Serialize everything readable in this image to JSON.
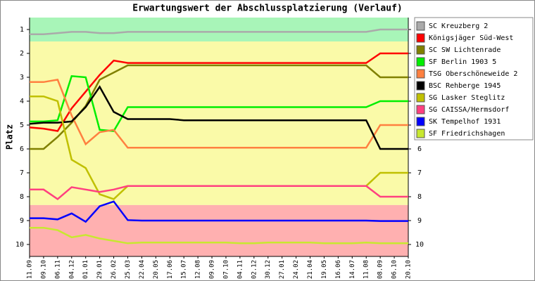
{
  "chart_data": {
    "type": "line",
    "title": "Erwartungswert der Abschlussplatzierung (Verlauf)",
    "y_label": "Platz",
    "categories": [
      "11.09",
      "09.10",
      "06.11",
      "04.12",
      "01.01",
      "29.01",
      "26.02",
      "25.03",
      "22.04",
      "20.05",
      "17.06",
      "15.07",
      "12.08",
      "09.09",
      "07.10",
      "04.11",
      "02.12",
      "30.12",
      "27.01",
      "24.02",
      "21.04",
      "19.05",
      "16.06",
      "14.07",
      "11.08",
      "08.09",
      "06.10",
      "20.10"
    ],
    "ylim": [
      10.5,
      0.5
    ],
    "yticks": [
      1,
      2,
      3,
      4,
      5,
      6,
      7,
      8,
      9,
      10
    ],
    "zones": [
      {
        "from": 0.5,
        "to": 1.5,
        "color": "#a8f5b8"
      },
      {
        "from": 1.5,
        "to": 8.35,
        "color": "#fafaa8"
      },
      {
        "from": 8.35,
        "to": 10.5,
        "color": "#ffb0b0"
      }
    ],
    "series": [
      {
        "name": "SC Kreuzberg 2",
        "color": "#aaaaaa",
        "values": [
          1.2,
          1.2,
          1.15,
          1.1,
          1.1,
          1.15,
          1.15,
          1.1,
          1.1,
          1.1,
          1.1,
          1.1,
          1.1,
          1.1,
          1.1,
          1.1,
          1.1,
          1.1,
          1.1,
          1.1,
          1.1,
          1.1,
          1.1,
          1.1,
          1.1,
          1.0,
          1.0,
          1.0
        ]
      },
      {
        "name": "Königsjäger Süd-West",
        "color": "#ff0000",
        "values": [
          5.1,
          5.15,
          5.25,
          4.3,
          3.6,
          2.9,
          2.3,
          2.4,
          2.4,
          2.4,
          2.4,
          2.4,
          2.4,
          2.4,
          2.4,
          2.4,
          2.4,
          2.4,
          2.4,
          2.4,
          2.4,
          2.4,
          2.4,
          2.4,
          2.4,
          2.0,
          2.0,
          2.0
        ]
      },
      {
        "name": "SC SW Lichtenrade",
        "color": "#808000",
        "values": [
          6.0,
          6.0,
          5.5,
          4.9,
          4.2,
          3.1,
          2.8,
          2.5,
          2.5,
          2.5,
          2.5,
          2.5,
          2.5,
          2.5,
          2.5,
          2.5,
          2.5,
          2.5,
          2.5,
          2.5,
          2.5,
          2.5,
          2.5,
          2.5,
          2.5,
          3.0,
          3.0,
          3.0
        ]
      },
      {
        "name": "SF Berlin 1903 5",
        "color": "#00ee00",
        "values": [
          4.85,
          4.85,
          4.8,
          2.95,
          3.0,
          5.2,
          5.25,
          4.25,
          4.25,
          4.25,
          4.25,
          4.25,
          4.25,
          4.25,
          4.25,
          4.25,
          4.25,
          4.25,
          4.25,
          4.25,
          4.25,
          4.25,
          4.25,
          4.25,
          4.25,
          4.0,
          4.0,
          4.0
        ]
      },
      {
        "name": "TSG Oberschöneweide 2",
        "color": "#ff8040",
        "values": [
          3.2,
          3.2,
          3.1,
          4.6,
          5.8,
          5.3,
          5.2,
          5.95,
          5.95,
          5.95,
          5.95,
          5.95,
          5.95,
          5.95,
          5.95,
          5.95,
          5.95,
          5.95,
          5.95,
          5.95,
          5.95,
          5.95,
          5.95,
          5.95,
          5.95,
          5.0,
          5.0,
          5.0
        ]
      },
      {
        "name": "BSC Rehberge 1945",
        "color": "#000000",
        "values": [
          4.95,
          4.9,
          4.9,
          4.85,
          4.25,
          3.4,
          4.45,
          4.75,
          4.75,
          4.75,
          4.75,
          4.8,
          4.8,
          4.8,
          4.8,
          4.8,
          4.8,
          4.8,
          4.8,
          4.8,
          4.8,
          4.8,
          4.8,
          4.8,
          4.8,
          6.0,
          6.0,
          6.0
        ]
      },
      {
        "name": "SG Lasker Steglitz",
        "color": "#c0c000",
        "values": [
          3.8,
          3.8,
          4.0,
          6.45,
          6.8,
          7.9,
          8.1,
          7.55,
          7.55,
          7.55,
          7.55,
          7.55,
          7.55,
          7.55,
          7.55,
          7.55,
          7.55,
          7.55,
          7.55,
          7.55,
          7.55,
          7.55,
          7.55,
          7.55,
          7.55,
          7.0,
          7.0,
          7.0
        ]
      },
      {
        "name": "SG CAISSA/Hermsdorf",
        "color": "#ff4080",
        "values": [
          7.7,
          7.7,
          8.1,
          7.6,
          7.7,
          7.8,
          7.7,
          7.55,
          7.55,
          7.55,
          7.55,
          7.55,
          7.55,
          7.55,
          7.55,
          7.55,
          7.55,
          7.55,
          7.55,
          7.55,
          7.55,
          7.55,
          7.55,
          7.55,
          7.55,
          8.0,
          8.0,
          8.0
        ]
      },
      {
        "name": "SK Tempelhof 1931",
        "color": "#0000ff",
        "values": [
          8.9,
          8.9,
          8.95,
          8.7,
          9.05,
          8.4,
          8.2,
          8.98,
          9.0,
          9.0,
          9.0,
          9.0,
          9.0,
          9.0,
          9.0,
          9.0,
          9.0,
          9.0,
          9.0,
          9.0,
          9.0,
          9.0,
          9.0,
          9.0,
          9.0,
          9.02,
          9.02,
          9.02
        ]
      },
      {
        "name": "SF Friedrichshagen",
        "color": "#c8e830",
        "values": [
          9.3,
          9.3,
          9.4,
          9.7,
          9.6,
          9.75,
          9.85,
          9.95,
          9.92,
          9.92,
          9.92,
          9.92,
          9.92,
          9.92,
          9.92,
          9.95,
          9.95,
          9.92,
          9.92,
          9.92,
          9.92,
          9.95,
          9.95,
          9.95,
          9.92,
          9.95,
          9.95,
          9.95
        ]
      }
    ]
  }
}
